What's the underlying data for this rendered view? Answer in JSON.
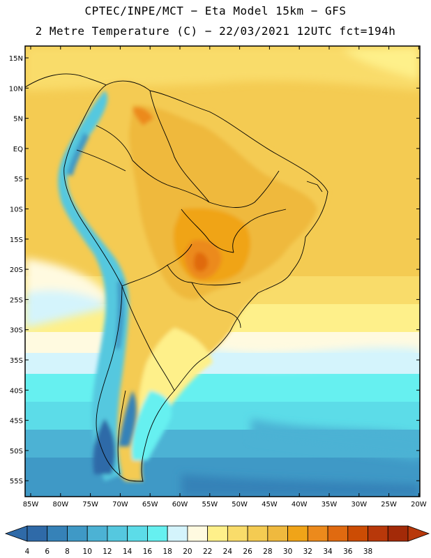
{
  "header": {
    "line1": "CPTEC/INPE/MCT −  Eta Model 15km − GFS",
    "line2": "2 Metre Temperature (C) − 22/03/2021 12UTC fct=194h"
  },
  "map": {
    "lat_labels": [
      "15N",
      "10N",
      "5N",
      "EQ",
      "5S",
      "10S",
      "15S",
      "20S",
      "25S",
      "30S",
      "35S",
      "40S",
      "45S",
      "50S",
      "55S"
    ],
    "lon_labels": [
      "85W",
      "80W",
      "75W",
      "70W",
      "65W",
      "60W",
      "55W",
      "50W",
      "45W",
      "40W",
      "35W",
      "30W",
      "25W",
      "20W"
    ]
  },
  "legend": {
    "values": [
      "4",
      "6",
      "8",
      "10",
      "12",
      "14",
      "16",
      "18",
      "20",
      "22",
      "24",
      "26",
      "28",
      "30",
      "32",
      "34",
      "36",
      "38"
    ],
    "colors": [
      "#2f6aa8",
      "#3682b8",
      "#3f99c6",
      "#4cb2d4",
      "#55c8df",
      "#5cdce8",
      "#66f0f0",
      "#d4f4fc",
      "#fffae0",
      "#fef08a",
      "#f9dc6a",
      "#f4cb52",
      "#efb93e",
      "#f0a418",
      "#ec8a1c",
      "#e06a10",
      "#cc4c04",
      "#b8380a",
      "#a32a08"
    ],
    "low_color": "#2f6aa8",
    "high_color": "#b8380a"
  }
}
